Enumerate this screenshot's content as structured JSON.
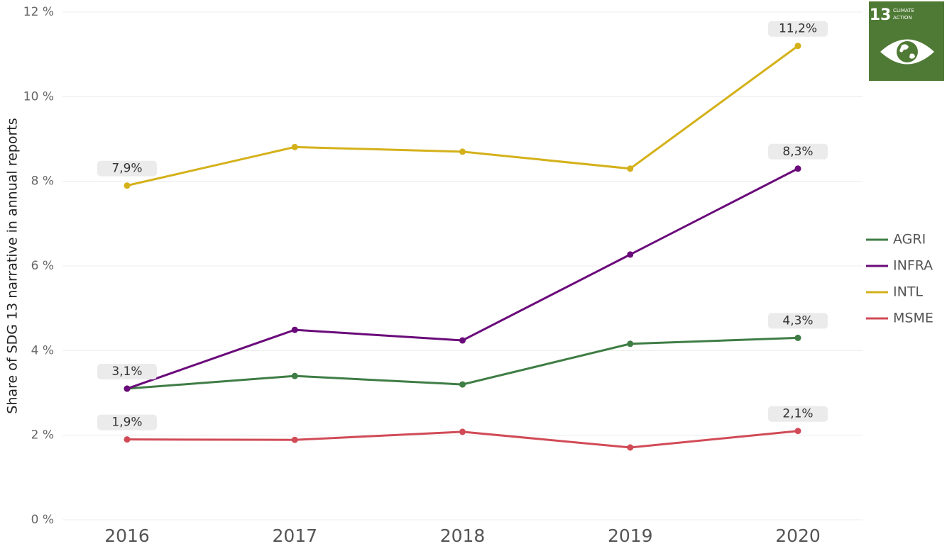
{
  "chart_data": {
    "type": "line",
    "y_label": "Share of SDG 13 narrative in annual reports",
    "categories": [
      "2016",
      "2017",
      "2018",
      "2019",
      "2020"
    ],
    "series": [
      {
        "name": "AGRI",
        "color": "#3f7d45",
        "values": [
          3.1,
          3.4,
          3.2,
          4.16,
          4.3
        ],
        "value_labels": [
          "3,1%",
          null,
          null,
          null,
          "4,3%"
        ]
      },
      {
        "name": "INFRA",
        "color": "#6a0a7a",
        "values": [
          3.1,
          4.49,
          4.24,
          6.27,
          8.3
        ],
        "value_labels": [
          null,
          null,
          null,
          null,
          "8,3%"
        ]
      },
      {
        "name": "INTL",
        "color": "#d4b11a",
        "values": [
          7.9,
          8.81,
          8.7,
          8.3,
          11.2
        ],
        "value_labels": [
          "7,9%",
          null,
          null,
          null,
          "11,2%"
        ]
      },
      {
        "name": "MSME",
        "color": "#d14b57",
        "values": [
          1.9,
          1.89,
          2.08,
          1.71,
          2.1
        ],
        "value_labels": [
          "1,9%",
          null,
          null,
          null,
          "2,1%"
        ]
      }
    ],
    "ylim": [
      0,
      12
    ],
    "yticks": [
      {
        "value": 0,
        "label": "0 %"
      },
      {
        "value": 2,
        "label": "2 %"
      },
      {
        "value": 4,
        "label": "4 %"
      },
      {
        "value": 6,
        "label": "6 %"
      },
      {
        "value": 8,
        "label": "8 %"
      },
      {
        "value": 10,
        "label": "10 %"
      },
      {
        "value": 12,
        "label": "12 %"
      }
    ],
    "grid": true,
    "legend": "right",
    "logo": {
      "number": "13",
      "lines": [
        "CLIMATE",
        "ACTION"
      ]
    }
  }
}
